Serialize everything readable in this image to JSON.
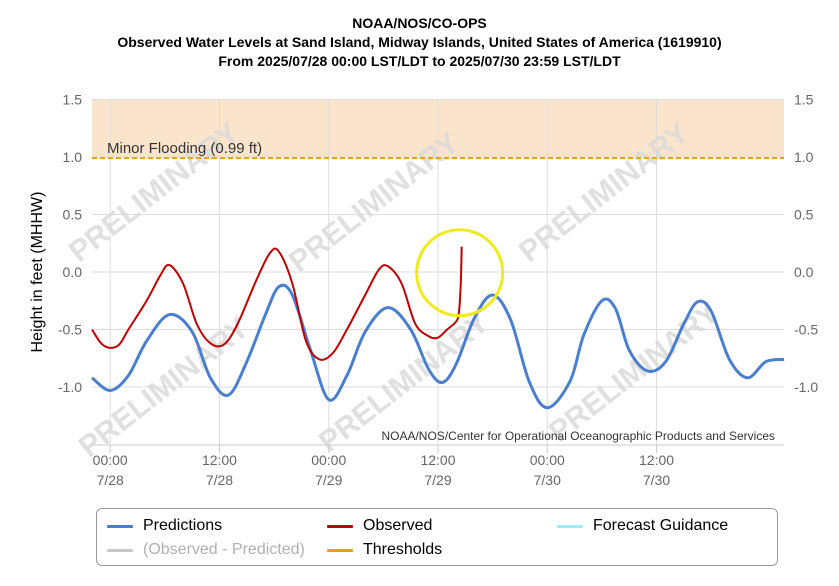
{
  "header": {
    "line1": "NOAA/NOS/CO-OPS",
    "line2": "Observed Water Levels at Sand Island, Midway Islands, United States of America (1619910)",
    "line3": "From 2025/07/28 00:00 LST/LDT to 2025/07/30 23:59 LST/LDT"
  },
  "watermark": "PRELIMINARY",
  "credit": "NOAA/NOS/Center for Operational Oceanographic Products and Services",
  "threshold_label": "Minor Flooding (0.99 ft)",
  "legend": [
    {
      "label": "Predictions",
      "color": "#4a7fcf",
      "dimmed": false
    },
    {
      "label": "Observed",
      "color": "#c00000",
      "dimmed": false
    },
    {
      "label": "Forecast Guidance",
      "color": "#99eeff",
      "dimmed": false
    },
    {
      "label": "(Observed - Predicted)",
      "color": "#c8c8c8",
      "dimmed": true
    },
    {
      "label": "Thresholds",
      "color": "#e6a020",
      "dimmed": false
    }
  ],
  "colors": {
    "predictions": "#4a7fcf",
    "observed": "#c00000",
    "threshold": "#e6a020",
    "flood_band": "#fae5cc",
    "highlight_circle": "#f0ea1e",
    "grid": "#dddddd",
    "watermark": "#d9d9d9"
  },
  "chart_data": {
    "type": "line",
    "ylabel": "Height in feet (MHHW)",
    "ylim": [
      -1.5,
      1.5
    ],
    "xlim": [
      -2,
      74
    ],
    "x_unit": "hours since 2025-07-28 00:00",
    "yticks": [
      "1.5",
      "1.0",
      "0.5",
      "0.0",
      "-0.5",
      "-1.0"
    ],
    "ytick_values": [
      1.5,
      1.0,
      0.5,
      0.0,
      -0.5,
      -1.0
    ],
    "xticks": [
      {
        "x": 0,
        "time": "00:00",
        "date": "7/28"
      },
      {
        "x": 12,
        "time": "12:00",
        "date": "7/28"
      },
      {
        "x": 24,
        "time": "00:00",
        "date": "7/29"
      },
      {
        "x": 36,
        "time": "12:00",
        "date": "7/29"
      },
      {
        "x": 48,
        "time": "00:00",
        "date": "7/30"
      },
      {
        "x": 60,
        "time": "12:00",
        "date": "7/30"
      }
    ],
    "threshold": {
      "name": "Minor Flooding",
      "value": 0.99
    },
    "flood_band": [
      0.99,
      1.5
    ],
    "series": [
      {
        "name": "Predictions",
        "x": [
          -2,
          0,
          2,
          4,
          6.5,
          9,
          11,
          13,
          15,
          17,
          18.5,
          20,
          22,
          24,
          26,
          28,
          30.5,
          33,
          35,
          36.5,
          38,
          40,
          42,
          44,
          46,
          48,
          50.5,
          52,
          54,
          55.5,
          57,
          59,
          61,
          63,
          64.5,
          66,
          68,
          70,
          72,
          74
        ],
        "y": [
          -0.92,
          -1.03,
          -0.9,
          -0.6,
          -0.37,
          -0.52,
          -0.92,
          -1.07,
          -0.78,
          -0.38,
          -0.13,
          -0.2,
          -0.68,
          -1.11,
          -0.9,
          -0.52,
          -0.31,
          -0.5,
          -0.85,
          -0.96,
          -0.8,
          -0.4,
          -0.2,
          -0.42,
          -0.95,
          -1.18,
          -0.95,
          -0.55,
          -0.25,
          -0.32,
          -0.68,
          -0.86,
          -0.78,
          -0.45,
          -0.26,
          -0.34,
          -0.76,
          -0.92,
          -0.78,
          -0.76
        ]
      },
      {
        "name": "Observed",
        "x": [
          -2,
          -1,
          0,
          1,
          2,
          4,
          5.5,
          6.5,
          8,
          9.5,
          11,
          12.5,
          14,
          16,
          17.5,
          18.5,
          20,
          21.5,
          23,
          24.5,
          26,
          28,
          29.5,
          30.5,
          32,
          33.5,
          35,
          36,
          37,
          38,
          38.3,
          38.5,
          38.6
        ],
        "y": [
          -0.5,
          -0.62,
          -0.66,
          -0.63,
          -0.5,
          -0.25,
          -0.03,
          0.06,
          -0.1,
          -0.45,
          -0.62,
          -0.63,
          -0.45,
          -0.08,
          0.16,
          0.18,
          -0.1,
          -0.6,
          -0.76,
          -0.7,
          -0.5,
          -0.2,
          0.02,
          0.05,
          -0.1,
          -0.45,
          -0.56,
          -0.57,
          -0.5,
          -0.43,
          -0.35,
          -0.1,
          0.22
        ]
      }
    ]
  }
}
